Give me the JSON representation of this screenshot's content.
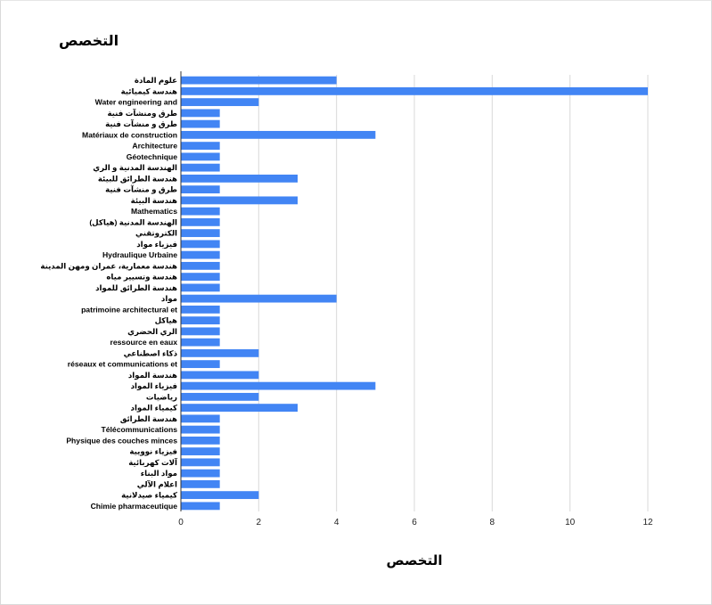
{
  "chart_data": {
    "type": "bar",
    "orientation": "horizontal",
    "title": "التخصص",
    "xlabel": "التخصص",
    "ylabel": "",
    "xlim": [
      0,
      12
    ],
    "xticks": [
      0,
      2,
      4,
      6,
      8,
      10,
      12
    ],
    "grid": true,
    "legend": "none",
    "bar_color": "#4285f4",
    "categories": [
      "علوم المادة",
      "هندسة كيميائية",
      "Water engineering and",
      "طرق ومنشآت فنية",
      "طرق و منشآت فنية",
      "Matériaux de construction",
      "Architecture",
      "Géotechnique",
      "الهندسة المدنية و الري",
      "هندسة الطرائق للبيئة",
      "طرق و منشآت فنية",
      "هندسة البيئة",
      "Mathematics",
      "الهندسة المدنية (هياكل)",
      "الكتروتقني",
      "فيزياء مواد",
      "Hydraulique Urbaine",
      "هندسة معمارية، عمران ومهن المدينة",
      "هندسة وتسيير مياه",
      "هندسة الطرائق للمواد",
      "مواد",
      "patrimoine architectural et",
      "هياكل",
      "الري الحضري",
      "ressource en eaux",
      "ذكاء اصطناعي",
      "réseaux et communications et",
      "هندسة المواد",
      "فيزياء المواد",
      "رياضيات",
      "كيمياء المواد",
      "هندسة الطرائق",
      "Télécommunications",
      "Physique des couches minces",
      "فيزياء نوويية",
      "آلات كهربائية",
      "مواد البناء",
      "اعلام الآلي",
      "كيمياء صيدلانية",
      "Chimie pharmaceutique"
    ],
    "values": [
      4,
      12,
      2,
      1,
      1,
      5,
      1,
      1,
      1,
      3,
      1,
      3,
      1,
      1,
      1,
      1,
      1,
      1,
      1,
      1,
      4,
      1,
      1,
      1,
      1,
      2,
      1,
      2,
      5,
      2,
      3,
      1,
      1,
      1,
      1,
      1,
      1,
      1,
      2,
      1
    ]
  }
}
